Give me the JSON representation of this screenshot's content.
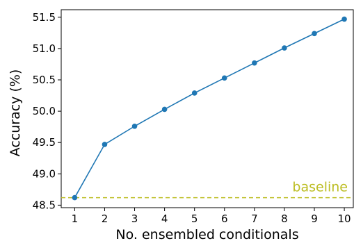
{
  "chart_data": {
    "type": "line",
    "xlabel": "No. ensembled conditionals",
    "ylabel": "Accuracy (%)",
    "x": [
      1,
      2,
      3,
      4,
      5,
      6,
      7,
      8,
      9,
      10
    ],
    "xlim": [
      0.55,
      10.3
    ],
    "ylim": [
      48.46,
      51.62
    ],
    "xticks": [
      1,
      2,
      3,
      4,
      5,
      6,
      7,
      8,
      9,
      10
    ],
    "yticks": [
      "48.5",
      "49.0",
      "49.5",
      "50.0",
      "50.5",
      "51.0",
      "51.5"
    ],
    "grid": false,
    "series": [
      {
        "values": [
          48.62,
          49.47,
          49.76,
          50.03,
          50.29,
          50.53,
          50.77,
          51.01,
          51.24,
          51.47
        ],
        "color": "#1f77b4",
        "marker": "circle"
      }
    ],
    "reference_line": {
      "label": "baseline",
      "y": 48.62,
      "color": "#bcbd22",
      "style": "dashed"
    }
  }
}
